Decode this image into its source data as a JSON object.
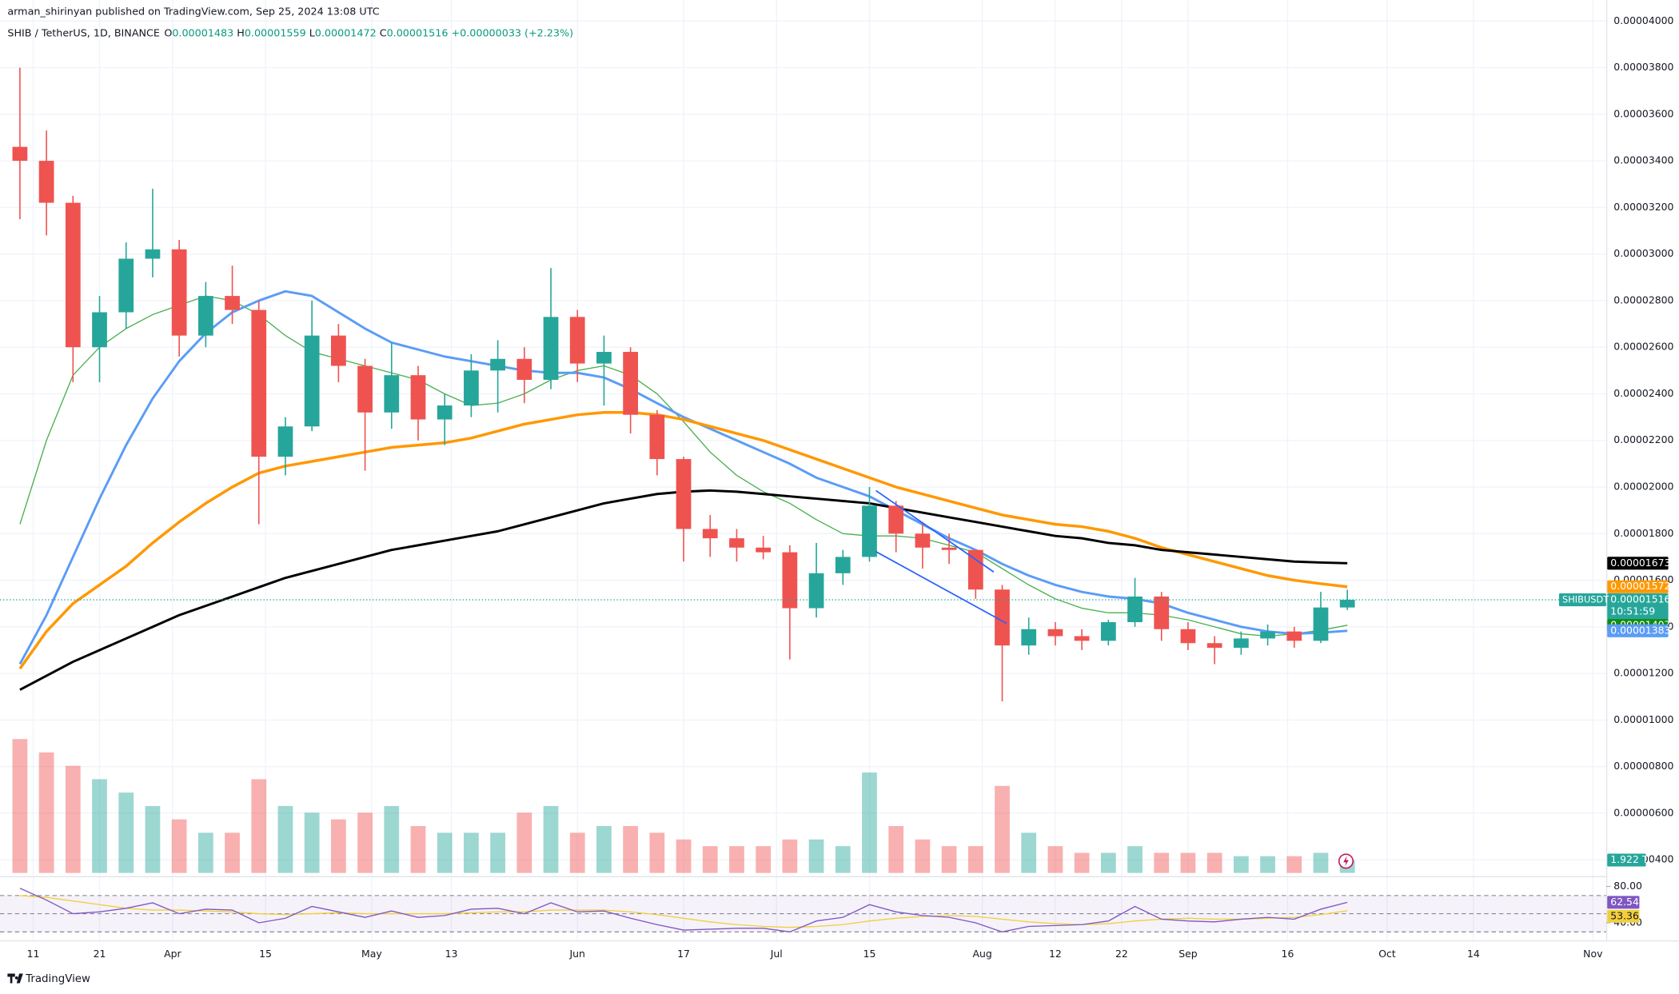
{
  "header": {
    "publisher": "arman_shirinyan published on TradingView.com, Sep 25, 2024 13:08 UTC"
  },
  "legend": {
    "symbol": "SHIB / TetherUS, 1D, BINANCE",
    "fields": [
      {
        "label": "O",
        "value": "0.00001483"
      },
      {
        "label": "H",
        "value": "0.00001559"
      },
      {
        "label": "L",
        "value": "0.00001472"
      },
      {
        "label": "C",
        "value": "0.00001516"
      }
    ],
    "change": "+0.00000033 (+2.23%)"
  },
  "footer": {
    "brand": "TradingView"
  },
  "chart_data": {
    "type": "candlestick",
    "x": [
      "2024-03-09",
      "2024-03-13",
      "2024-03-17",
      "2024-03-21",
      "2024-03-25",
      "2024-03-29",
      "2024-04-02",
      "2024-04-06",
      "2024-04-10",
      "2024-04-14",
      "2024-04-18",
      "2024-04-22",
      "2024-04-26",
      "2024-04-30",
      "2024-05-04",
      "2024-05-08",
      "2024-05-12",
      "2024-05-16",
      "2024-05-20",
      "2024-05-24",
      "2024-05-28",
      "2024-06-01",
      "2024-06-05",
      "2024-06-09",
      "2024-06-13",
      "2024-06-17",
      "2024-06-21",
      "2024-06-25",
      "2024-06-29",
      "2024-07-03",
      "2024-07-07",
      "2024-07-11",
      "2024-07-15",
      "2024-07-19",
      "2024-07-23",
      "2024-07-27",
      "2024-07-31",
      "2024-08-04",
      "2024-08-08",
      "2024-08-12",
      "2024-08-16",
      "2024-08-20",
      "2024-08-24",
      "2024-08-28",
      "2024-09-01",
      "2024-09-05",
      "2024-09-09",
      "2024-09-13",
      "2024-09-17",
      "2024-09-21",
      "2024-09-25"
    ],
    "open": [
      3.46e-05,
      3.4e-05,
      3.22e-05,
      2.6e-05,
      2.75e-05,
      2.98e-05,
      3.02e-05,
      2.65e-05,
      2.82e-05,
      2.76e-05,
      2.13e-05,
      2.26e-05,
      2.65e-05,
      2.52e-05,
      2.32e-05,
      2.48e-05,
      2.29e-05,
      2.35e-05,
      2.5e-05,
      2.55e-05,
      2.46e-05,
      2.73e-05,
      2.53e-05,
      2.58e-05,
      2.31e-05,
      2.12e-05,
      1.82e-05,
      1.78e-05,
      1.74e-05,
      1.72e-05,
      1.48e-05,
      1.63e-05,
      1.7e-05,
      1.92e-05,
      1.8e-05,
      1.74e-05,
      1.73e-05,
      1.56e-05,
      1.32e-05,
      1.39e-05,
      1.36e-05,
      1.34e-05,
      1.42e-05,
      1.53e-05,
      1.39e-05,
      1.33e-05,
      1.31e-05,
      1.35e-05,
      1.38e-05,
      1.34e-05,
      1.483e-05
    ],
    "high": [
      3.8e-05,
      3.53e-05,
      3.25e-05,
      2.82e-05,
      3.05e-05,
      3.28e-05,
      3.06e-05,
      2.88e-05,
      2.95e-05,
      2.8e-05,
      2.3e-05,
      2.8e-05,
      2.7e-05,
      2.55e-05,
      2.62e-05,
      2.52e-05,
      2.4e-05,
      2.57e-05,
      2.63e-05,
      2.6e-05,
      2.94e-05,
      2.76e-05,
      2.65e-05,
      2.6e-05,
      2.33e-05,
      2.13e-05,
      1.88e-05,
      1.82e-05,
      1.79e-05,
      1.75e-05,
      1.76e-05,
      1.73e-05,
      2e-05,
      1.94e-05,
      1.85e-05,
      1.8e-05,
      1.73e-05,
      1.58e-05,
      1.44e-05,
      1.42e-05,
      1.39e-05,
      1.43e-05,
      1.61e-05,
      1.55e-05,
      1.42e-05,
      1.36e-05,
      1.38e-05,
      1.41e-05,
      1.4e-05,
      1.55e-05,
      1.559e-05
    ],
    "low": [
      3.15e-05,
      3.08e-05,
      2.45e-05,
      2.45e-05,
      2.68e-05,
      2.9e-05,
      2.56e-05,
      2.6e-05,
      2.7e-05,
      1.84e-05,
      2.05e-05,
      2.24e-05,
      2.45e-05,
      2.07e-05,
      2.25e-05,
      2.2e-05,
      2.18e-05,
      2.3e-05,
      2.32e-05,
      2.36e-05,
      2.42e-05,
      2.45e-05,
      2.35e-05,
      2.23e-05,
      2.05e-05,
      1.68e-05,
      1.7e-05,
      1.68e-05,
      1.69e-05,
      1.26e-05,
      1.44e-05,
      1.58e-05,
      1.68e-05,
      1.72e-05,
      1.65e-05,
      1.67e-05,
      1.52e-05,
      1.08e-05,
      1.28e-05,
      1.32e-05,
      1.3e-05,
      1.32e-05,
      1.4e-05,
      1.34e-05,
      1.3e-05,
      1.24e-05,
      1.28e-05,
      1.32e-05,
      1.31e-05,
      1.33e-05,
      1.472e-05
    ],
    "close": [
      3.4e-05,
      3.22e-05,
      2.6e-05,
      2.75e-05,
      2.98e-05,
      3.02e-05,
      2.65e-05,
      2.82e-05,
      2.76e-05,
      2.13e-05,
      2.26e-05,
      2.65e-05,
      2.52e-05,
      2.32e-05,
      2.48e-05,
      2.29e-05,
      2.35e-05,
      2.5e-05,
      2.55e-05,
      2.46e-05,
      2.73e-05,
      2.53e-05,
      2.58e-05,
      2.31e-05,
      2.12e-05,
      1.82e-05,
      1.78e-05,
      1.74e-05,
      1.72e-05,
      1.48e-05,
      1.63e-05,
      1.7e-05,
      1.92e-05,
      1.8e-05,
      1.74e-05,
      1.73e-05,
      1.56e-05,
      1.32e-05,
      1.39e-05,
      1.36e-05,
      1.34e-05,
      1.42e-05,
      1.53e-05,
      1.39e-05,
      1.33e-05,
      1.31e-05,
      1.35e-05,
      1.38e-05,
      1.34e-05,
      1.483e-05,
      1.516e-05
    ],
    "up_color": "#26a69a",
    "down_color": "#ef5350",
    "last_label": "0.00001516",
    "symbol_tag": "SHIBUSDT",
    "countdown": "10:51:59",
    "lines": [
      {
        "color": "#4caf50",
        "width": 1,
        "last_value_label": "0.00001407",
        "label_color": "#138a13",
        "values": [
          1.84e-05,
          2.2e-05,
          2.48e-05,
          2.6e-05,
          2.68e-05,
          2.74e-05,
          2.78e-05,
          2.82e-05,
          2.8e-05,
          2.74e-05,
          2.65e-05,
          2.58e-05,
          2.55e-05,
          2.52e-05,
          2.49e-05,
          2.46e-05,
          2.4e-05,
          2.35e-05,
          2.36e-05,
          2.4e-05,
          2.46e-05,
          2.5e-05,
          2.52e-05,
          2.48e-05,
          2.4e-05,
          2.28e-05,
          2.15e-05,
          2.05e-05,
          1.98e-05,
          1.93e-05,
          1.86e-05,
          1.8e-05,
          1.79e-05,
          1.79e-05,
          1.78e-05,
          1.75e-05,
          1.72e-05,
          1.65e-05,
          1.58e-05,
          1.52e-05,
          1.48e-05,
          1.46e-05,
          1.46e-05,
          1.45e-05,
          1.43e-05,
          1.4e-05,
          1.37e-05,
          1.36e-05,
          1.37e-05,
          1.385e-05,
          1.407e-05
        ]
      },
      {
        "color": "#5b9cf6",
        "width": 2.2,
        "last_value_label": "0.00001383",
        "label_color": "#5b9cf6",
        "values": [
          1.24e-05,
          1.45e-05,
          1.7e-05,
          1.95e-05,
          2.18e-05,
          2.38e-05,
          2.54e-05,
          2.66e-05,
          2.75e-05,
          2.8e-05,
          2.84e-05,
          2.82e-05,
          2.75e-05,
          2.68e-05,
          2.62e-05,
          2.59e-05,
          2.56e-05,
          2.54e-05,
          2.52e-05,
          2.5e-05,
          2.49e-05,
          2.49e-05,
          2.47e-05,
          2.42e-05,
          2.36e-05,
          2.3e-05,
          2.25e-05,
          2.2e-05,
          2.15e-05,
          2.1e-05,
          2.04e-05,
          2e-05,
          1.96e-05,
          1.9e-05,
          1.84e-05,
          1.78e-05,
          1.73e-05,
          1.67e-05,
          1.62e-05,
          1.58e-05,
          1.55e-05,
          1.53e-05,
          1.52e-05,
          1.5e-05,
          1.46e-05,
          1.43e-05,
          1.4e-05,
          1.38e-05,
          1.37e-05,
          1.375e-05,
          1.383e-05
        ]
      },
      {
        "color": "#ff9800",
        "width": 2.6,
        "last_value_label": "0.00001572",
        "label_color": "#ff9800",
        "values": [
          1.22e-05,
          1.38e-05,
          1.5e-05,
          1.58e-05,
          1.66e-05,
          1.76e-05,
          1.85e-05,
          1.93e-05,
          2e-05,
          2.06e-05,
          2.09e-05,
          2.11e-05,
          2.13e-05,
          2.15e-05,
          2.17e-05,
          2.18e-05,
          2.19e-05,
          2.21e-05,
          2.24e-05,
          2.27e-05,
          2.29e-05,
          2.31e-05,
          2.32e-05,
          2.32e-05,
          2.31e-05,
          2.29e-05,
          2.26e-05,
          2.23e-05,
          2.2e-05,
          2.16e-05,
          2.12e-05,
          2.08e-05,
          2.04e-05,
          2e-05,
          1.97e-05,
          1.94e-05,
          1.91e-05,
          1.88e-05,
          1.86e-05,
          1.84e-05,
          1.83e-05,
          1.81e-05,
          1.78e-05,
          1.74e-05,
          1.71e-05,
          1.68e-05,
          1.65e-05,
          1.62e-05,
          1.6e-05,
          1.585e-05,
          1.572e-05
        ]
      },
      {
        "color": "#000000",
        "width": 2.2,
        "last_value_label": "0.00001673",
        "label_color": "#000000",
        "values": [
          1.13e-05,
          1.19e-05,
          1.25e-05,
          1.3e-05,
          1.35e-05,
          1.4e-05,
          1.45e-05,
          1.49e-05,
          1.53e-05,
          1.57e-05,
          1.61e-05,
          1.64e-05,
          1.67e-05,
          1.7e-05,
          1.73e-05,
          1.75e-05,
          1.77e-05,
          1.79e-05,
          1.81e-05,
          1.84e-05,
          1.87e-05,
          1.9e-05,
          1.93e-05,
          1.95e-05,
          1.97e-05,
          1.98e-05,
          1.985e-05,
          1.98e-05,
          1.97e-05,
          1.96e-05,
          1.95e-05,
          1.94e-05,
          1.93e-05,
          1.91e-05,
          1.89e-05,
          1.87e-05,
          1.85e-05,
          1.83e-05,
          1.81e-05,
          1.79e-05,
          1.78e-05,
          1.76e-05,
          1.75e-05,
          1.73e-05,
          1.72e-05,
          1.71e-05,
          1.7e-05,
          1.69e-05,
          1.68e-05,
          1.676e-05,
          1.673e-05
        ]
      }
    ],
    "xlim": [
      "2024-03-06",
      "2024-11-03"
    ],
    "xticks": [
      {
        "value": "2024-03-11",
        "label": "11"
      },
      {
        "value": "2024-03-21",
        "label": "21"
      },
      {
        "value": "2024-04-01",
        "label": "Apr"
      },
      {
        "value": "2024-04-15",
        "label": "15"
      },
      {
        "value": "2024-05-01",
        "label": "May"
      },
      {
        "value": "2024-05-13",
        "label": "13"
      },
      {
        "value": "2024-06-01",
        "label": "Jun"
      },
      {
        "value": "2024-06-17",
        "label": "17"
      },
      {
        "value": "2024-07-01",
        "label": "Jul"
      },
      {
        "value": "2024-07-15",
        "label": "15"
      },
      {
        "value": "2024-08-01",
        "label": "Aug"
      },
      {
        "value": "2024-08-12",
        "label": "12"
      },
      {
        "value": "2024-08-22",
        "label": "22"
      },
      {
        "value": "2024-09-01",
        "label": "Sep"
      },
      {
        "value": "2024-09-16",
        "label": "16"
      },
      {
        "value": "2024-10-01",
        "label": "Oct"
      },
      {
        "value": "2024-10-14",
        "label": "14"
      },
      {
        "value": "2024-11-01",
        "label": "Nov"
      }
    ],
    "ylim": [
      3.3e-06,
      4.09e-05
    ],
    "yticks": [
      {
        "value": 4e-06,
        "label": "0.00000400"
      },
      {
        "value": 6e-06,
        "label": "0.00000600"
      },
      {
        "value": 8e-06,
        "label": "0.00000800"
      },
      {
        "value": 1e-05,
        "label": "0.00001000"
      },
      {
        "value": 1.2e-05,
        "label": "0.00001200"
      },
      {
        "value": 1.4e-05,
        "label": "0.00001400"
      },
      {
        "value": 1.6e-05,
        "label": "0.00001600"
      },
      {
        "value": 1.8e-05,
        "label": "0.00001800"
      },
      {
        "value": 2e-05,
        "label": "0.00002000"
      },
      {
        "value": 2.2e-05,
        "label": "0.00002200"
      },
      {
        "value": 2.4e-05,
        "label": "0.00002400"
      },
      {
        "value": 2.6e-05,
        "label": "0.00002600"
      },
      {
        "value": 2.8e-05,
        "label": "0.00002800"
      },
      {
        "value": 3e-05,
        "label": "0.00003000"
      },
      {
        "value": 3.2e-05,
        "label": "0.00003200"
      },
      {
        "value": 3.4e-05,
        "label": "0.00003400"
      },
      {
        "value": 3.6e-05,
        "label": "0.00003600"
      },
      {
        "value": 3.8e-05,
        "label": "0.00003800"
      },
      {
        "value": 4e-05,
        "label": "0.00004000"
      }
    ],
    "grid": true,
    "volume": {
      "ylim": [
        0,
        32
      ],
      "last_value_label": "1.922 T",
      "label_color": "#26a69a",
      "values": [
        20,
        18,
        16,
        14,
        12,
        10,
        8,
        6,
        6,
        14,
        10,
        9,
        8,
        9,
        10,
        7,
        6,
        6,
        6,
        9,
        10,
        6,
        7,
        7,
        6,
        5,
        4,
        4,
        4,
        5,
        5,
        4,
        15,
        7,
        5,
        4,
        4,
        13,
        6,
        4,
        3,
        3,
        4,
        3,
        3,
        3,
        2.5,
        2.5,
        2.5,
        3,
        1.922
      ]
    },
    "rsi": {
      "ylim": [
        23,
        89
      ],
      "bands": [
        30,
        50,
        70
      ],
      "color": "#7e57c2",
      "ma_color": "#f2cf3a",
      "yticks": [
        {
          "value": 80,
          "label": "80.00"
        },
        {
          "value": 40,
          "label": "40.00"
        }
      ],
      "values": [
        78,
        65,
        50,
        52,
        56,
        62,
        50,
        55,
        54,
        40,
        45,
        58,
        52,
        46,
        53,
        46,
        48,
        55,
        56,
        50,
        62,
        52,
        53,
        45,
        38,
        32,
        33,
        34,
        34,
        30,
        42,
        46,
        60,
        52,
        48,
        46,
        40,
        30,
        36,
        37,
        38,
        42,
        58,
        44,
        42,
        41,
        44,
        46,
        44,
        55,
        62.54
      ],
      "ma": [
        70,
        68,
        64,
        60,
        56,
        54,
        54,
        53,
        52,
        50,
        49,
        50,
        51,
        50,
        50,
        50,
        50,
        51,
        52,
        52,
        54,
        54,
        54,
        52,
        49,
        45,
        41,
        38,
        36,
        35,
        36,
        38,
        42,
        45,
        47,
        48,
        47,
        44,
        41,
        39,
        38,
        39,
        42,
        44,
        45,
        44,
        44,
        45,
        46,
        49,
        53.36
      ]
    }
  }
}
